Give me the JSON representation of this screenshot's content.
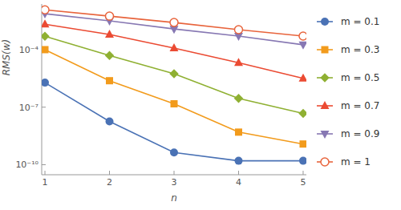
{
  "chart_data": {
    "type": "line",
    "x_label": "n",
    "y_label": "RMS(w)",
    "log": "y",
    "grid": false,
    "legend": "right",
    "x": [
      1,
      2,
      3,
      4,
      5
    ],
    "xlim": [
      0.95,
      5.05
    ],
    "xticks": [
      1,
      2,
      3,
      4,
      5
    ],
    "ylim": [
      3e-11,
      0.024
    ],
    "yticks": [
      {
        "value": 0.0001,
        "label": "10⁻⁴"
      },
      {
        "value": 1e-07,
        "label": "10⁻⁷"
      },
      {
        "value": 1e-10,
        "label": "10⁻¹⁰"
      }
    ],
    "series": [
      {
        "name": "m = 0.1",
        "color": "#4a72b5",
        "marker": "circle",
        "values": [
          1.9e-06,
          1.8e-08,
          4.3e-10,
          1.6e-10,
          1.6e-10
        ]
      },
      {
        "name": "m = 0.3",
        "color": "#f29b1c",
        "marker": "square",
        "values": [
          0.0001,
          2.4e-06,
          1.5e-07,
          5e-09,
          1.2e-09
        ]
      },
      {
        "name": "m = 0.5",
        "color": "#8fb032",
        "marker": "diamond",
        "values": [
          0.0005,
          5e-05,
          5.6e-06,
          2.9e-07,
          4.7e-08
        ]
      },
      {
        "name": "m = 0.7",
        "color": "#eb4b33",
        "marker": "triangle",
        "values": [
          0.0021,
          0.00062,
          0.00012,
          2.1e-05,
          3.2e-06
        ]
      },
      {
        "name": "m = 0.9",
        "color": "#8778b3",
        "marker": "triangle-down",
        "values": [
          0.0075,
          0.0032,
          0.0012,
          0.00051,
          0.00018
        ]
      },
      {
        "name": "m = 1",
        "color": "#e8643c",
        "marker": "circle-open",
        "values": [
          0.012,
          0.0056,
          0.0026,
          0.0011,
          0.00051
        ]
      }
    ]
  }
}
